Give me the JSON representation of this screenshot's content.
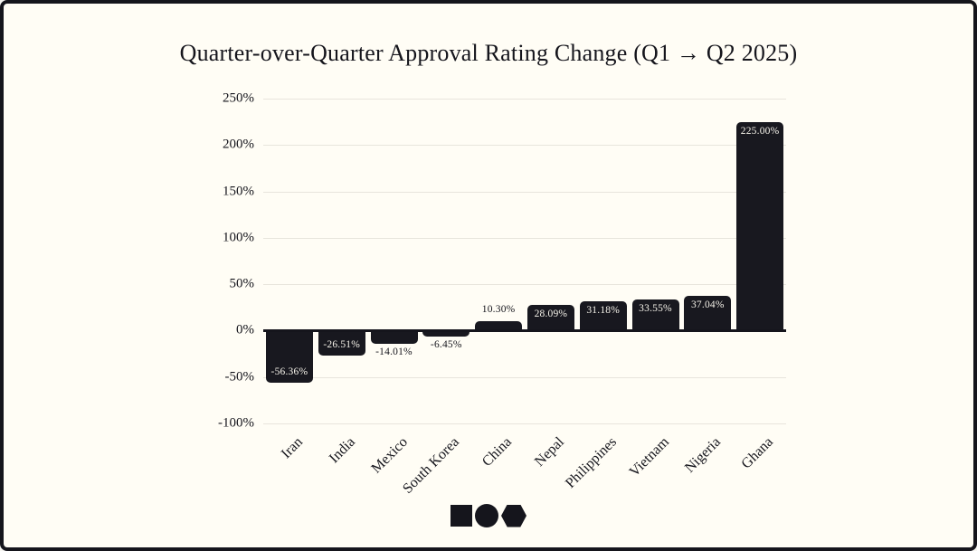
{
  "title": "Quarter-over-Quarter Approval Rating Change (Q1 → Q2 2025)",
  "chart_data": {
    "type": "bar",
    "title": "Quarter-over-Quarter Approval Rating Change (Q1 → Q2 2025)",
    "categories": [
      "Iran",
      "India",
      "Mexico",
      "South Korea",
      "China",
      "Nepal",
      "Philippines",
      "Vietnam",
      "Nigeria",
      "Ghana"
    ],
    "values": [
      -56.36,
      -26.51,
      -14.01,
      -6.45,
      10.3,
      28.09,
      31.18,
      33.55,
      37.04,
      225.0
    ],
    "bar_labels": [
      "-56.36%",
      "-26.51%",
      "-14.01%",
      "-6.45%",
      "10.30%",
      "28.09%",
      "31.18%",
      "33.55%",
      "37.04%",
      "225.00%"
    ],
    "xlabel": "",
    "ylabel": "",
    "y_tick_labels": [
      "250%",
      "200%",
      "150%",
      "100%",
      "50%",
      "0%",
      "-50%",
      "-100%"
    ],
    "y_tick_values": [
      250,
      200,
      150,
      100,
      50,
      0,
      -50,
      -100
    ],
    "ylim": [
      -100,
      250
    ],
    "grid": true,
    "legend": "none"
  },
  "colors": {
    "background": "#fffdf5",
    "border": "#15151c",
    "bar": "#18181f",
    "gridline": "#e8e5dc",
    "text": "#15151c",
    "label_inside": "#f6f3ea",
    "label_outside": "#15151c"
  },
  "logo": {
    "shapes": [
      "square",
      "circle",
      "hexagon"
    ],
    "color": "#15151c"
  }
}
